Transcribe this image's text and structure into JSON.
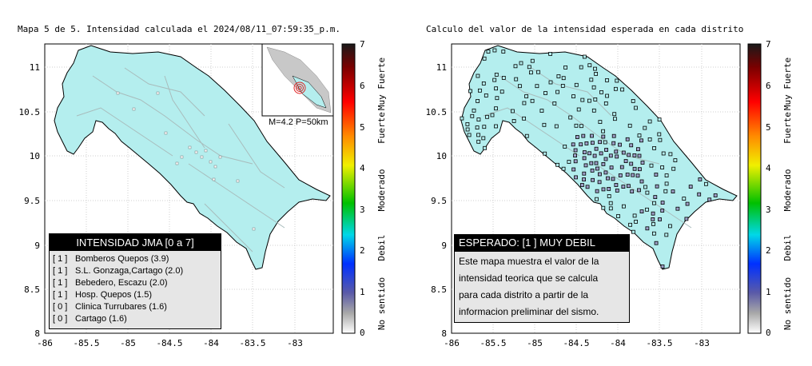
{
  "left_map": {
    "title": "Mapa 5 de 5. Intensidad calculada el 2024/08/11_07:59:35_p.m.",
    "inset_caption": "M=4.2 P=50km",
    "legend_title": "INTENSIDAD JMA [0 a 7]",
    "stations": [
      {
        "level": "[ 1 ]",
        "label": "Bomberos Quepos (3.9)"
      },
      {
        "level": "[ 1 ]",
        "label": "S.L. Gonzaga,Cartago (2.0)"
      },
      {
        "level": "[ 1 ]",
        "label": "Bebedero, Escazu (2.0)"
      },
      {
        "level": "[ 1 ]",
        "label": "Hosp. Quepos (1.5)"
      },
      {
        "level": "[ 0 ]",
        "label": "Clinica Turrubares (1.6)"
      },
      {
        "level": "[ 0 ]",
        "label": "Cartago (1.6)"
      }
    ]
  },
  "right_map": {
    "title": "Calculo del valor de la intensidad esperada en cada distrito",
    "legend_title": "ESPERADO: [1 ] MUY DEBIL",
    "description_lines": [
      "Este mapa muestra el valor de la",
      "intensidad teorica que se calcula",
      "para cada distrito a partir de la",
      "informacion preliminar del sismo."
    ]
  },
  "axes": {
    "x_ticks": [
      "-86",
      "-85.5",
      "-85",
      "-84.5",
      "-84",
      "-83.5",
      "-83"
    ],
    "y_ticks": [
      "11",
      "10.5",
      "10",
      "9.5",
      "9",
      "8.5",
      "8"
    ]
  },
  "colorbar": {
    "ticks": [
      "7",
      "6",
      "5",
      "4",
      "3",
      "2",
      "1",
      "0"
    ],
    "labels": [
      "Muy Fuerte",
      "Fuerte",
      "Moderado",
      "Debil",
      "No sentido"
    ]
  },
  "colors": {
    "land": "#b4eeee",
    "sea": "#ffffff",
    "rivers": "#a8bcbc",
    "district_marker": "#9ea0c8",
    "epicenter": "#e02020"
  }
}
